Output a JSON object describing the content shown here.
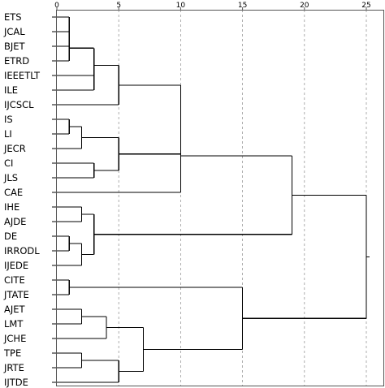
{
  "chart_data": {
    "type": "dendrogram",
    "orientation": "horizontal",
    "x_ticks": [
      0,
      5,
      10,
      15,
      20,
      25
    ],
    "xlim": [
      0,
      25
    ],
    "grid": "vertical dashed lines at tick positions",
    "leaves": [
      "ETS",
      "JCAL",
      "BJET",
      "ETRD",
      "IEEETLT",
      "ILE",
      "IJCSCL",
      "IS",
      "LI",
      "JECR",
      "CI",
      "JLS",
      "CAE",
      "IHE",
      "AJDE",
      "DE",
      "IRRODL",
      "IJEDE",
      "CITE",
      "JTATE",
      "AJET",
      "LMT",
      "JCHE",
      "TPE",
      "JRTE",
      "IJTDE"
    ],
    "merges": [
      {
        "id": "m1",
        "left": "ETS",
        "right": "JCAL",
        "distance": 1.0
      },
      {
        "id": "m2",
        "left": "m1",
        "right": "BJET",
        "distance": 1.0
      },
      {
        "id": "m3",
        "left": "m2",
        "right": "ETRD",
        "distance": 1.0
      },
      {
        "id": "m4",
        "left": "IEEETLT",
        "right": "ILE",
        "distance": 3.0
      },
      {
        "id": "m5",
        "left": "m3",
        "right": "m4",
        "distance": 3.0
      },
      {
        "id": "m6",
        "left": "m5",
        "right": "IJCSCL",
        "distance": 5.0
      },
      {
        "id": "m7",
        "left": "IS",
        "right": "LI",
        "distance": 1.0
      },
      {
        "id": "m8",
        "left": "m7",
        "right": "JECR",
        "distance": 2.0
      },
      {
        "id": "m9",
        "left": "CI",
        "right": "JLS",
        "distance": 3.0
      },
      {
        "id": "m10",
        "left": "m8",
        "right": "m9",
        "distance": 5.0
      },
      {
        "id": "m11",
        "left": "m6",
        "right": "m10",
        "distance": 10.0
      },
      {
        "id": "m12",
        "left": "m11",
        "right": "CAE",
        "distance": 10.0
      },
      {
        "id": "m13",
        "left": "IHE",
        "right": "AJDE",
        "distance": 2.0
      },
      {
        "id": "m14",
        "left": "DE",
        "right": "IRRODL",
        "distance": 1.0
      },
      {
        "id": "m15",
        "left": "m14",
        "right": "IJEDE",
        "distance": 2.0
      },
      {
        "id": "m16",
        "left": "m13",
        "right": "m15",
        "distance": 3.0
      },
      {
        "id": "m17",
        "left": "m12",
        "right": "m16",
        "distance": 19.0
      },
      {
        "id": "m18",
        "left": "CITE",
        "right": "JTATE",
        "distance": 1.0
      },
      {
        "id": "m19",
        "left": "AJET",
        "right": "LMT",
        "distance": 2.0
      },
      {
        "id": "m20",
        "left": "m19",
        "right": "JCHE",
        "distance": 4.0
      },
      {
        "id": "m21",
        "left": "TPE",
        "right": "JRTE",
        "distance": 2.0
      },
      {
        "id": "m22",
        "left": "m21",
        "right": "IJTDE",
        "distance": 5.0
      },
      {
        "id": "m23",
        "left": "m20",
        "right": "m22",
        "distance": 7.0
      },
      {
        "id": "m24",
        "left": "m18",
        "right": "m23",
        "distance": 15.0
      },
      {
        "id": "m25",
        "left": "m17",
        "right": "m24",
        "distance": 25.0
      }
    ]
  }
}
